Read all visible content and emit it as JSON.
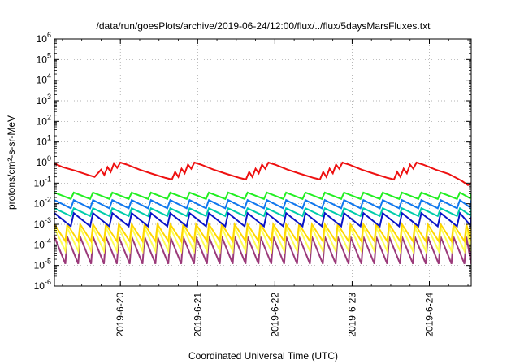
{
  "chart_data": {
    "type": "line",
    "title": "/data/run/goesPlots/archive/2019-06-24/12:00/flux/../flux/5daysMarsFluxes.txt",
    "xlabel": "Coordinated Universal Time (UTC)",
    "ylabel": "protons/cm²-s-sr-MeV",
    "y_scale": "log",
    "ylim": [
      1e-06,
      1000000.0
    ],
    "xlim": [
      "2019-06-19 03:30",
      "2019-06-24 13:00"
    ],
    "grid": true,
    "x_tick_labels": [
      "2019-6-20",
      "2019-6-21",
      "2019-6-22",
      "2019-6-23",
      "2019-6-24"
    ],
    "x_tick_dates": [
      "2019-06-20 00:00",
      "2019-06-21 00:00",
      "2019-06-22 00:00",
      "2019-06-23 00:00",
      "2019-06-24 00:00"
    ],
    "y_ticks": [
      1e-06,
      1e-05,
      0.0001,
      0.001,
      0.01,
      0.1,
      1.0,
      10.0,
      100.0,
      1000.0,
      10000.0,
      100000.0,
      1000000.0
    ],
    "y_tick_base": "10",
    "y_tick_exponents": [
      "-6",
      "-5",
      "-4",
      "-3",
      "-2",
      "-1",
      "0",
      "1",
      "2",
      "3",
      "4",
      "5",
      "6"
    ],
    "series": [
      {
        "color": "#ee1111",
        "points": [
          [
            "2019-06-19 03:30",
            0.9
          ],
          [
            "2019-06-19 06:00",
            0.6
          ],
          [
            "2019-06-19 10:00",
            0.4
          ],
          [
            "2019-06-19 14:00",
            0.25
          ],
          [
            "2019-06-19 16:00",
            0.2
          ],
          [
            "2019-06-19 18:00",
            0.45
          ],
          [
            "2019-06-19 19:00",
            0.25
          ],
          [
            "2019-06-19 20:00",
            0.6
          ],
          [
            "2019-06-19 21:00",
            0.35
          ],
          [
            "2019-06-19 22:00",
            0.9
          ],
          [
            "2019-06-19 23:00",
            0.55
          ],
          [
            "2019-06-20 00:00",
            1.0
          ],
          [
            "2019-06-20 02:00",
            0.8
          ],
          [
            "2019-06-20 06:00",
            0.45
          ],
          [
            "2019-06-20 10:00",
            0.28
          ],
          [
            "2019-06-20 14:00",
            0.18
          ],
          [
            "2019-06-20 16:00",
            0.15
          ],
          [
            "2019-06-20 17:00",
            0.35
          ],
          [
            "2019-06-20 18:00",
            0.2
          ],
          [
            "2019-06-20 19:00",
            0.5
          ],
          [
            "2019-06-20 20:00",
            0.3
          ],
          [
            "2019-06-20 21:00",
            0.8
          ],
          [
            "2019-06-20 22:00",
            0.5
          ],
          [
            "2019-06-20 23:00",
            1.0
          ],
          [
            "2019-06-21 01:00",
            0.8
          ],
          [
            "2019-06-21 05:00",
            0.45
          ],
          [
            "2019-06-21 09:00",
            0.28
          ],
          [
            "2019-06-21 13:00",
            0.18
          ],
          [
            "2019-06-21 15:00",
            0.15
          ],
          [
            "2019-06-21 16:00",
            0.35
          ],
          [
            "2019-06-21 17:00",
            0.2
          ],
          [
            "2019-06-21 18:00",
            0.5
          ],
          [
            "2019-06-21 19:00",
            0.3
          ],
          [
            "2019-06-21 20:00",
            0.8
          ],
          [
            "2019-06-21 21:00",
            0.5
          ],
          [
            "2019-06-21 22:00",
            1.0
          ],
          [
            "2019-06-22 00:00",
            0.8
          ],
          [
            "2019-06-22 04:00",
            0.45
          ],
          [
            "2019-06-22 08:00",
            0.28
          ],
          [
            "2019-06-22 12:00",
            0.18
          ],
          [
            "2019-06-22 14:00",
            0.15
          ],
          [
            "2019-06-22 15:00",
            0.35
          ],
          [
            "2019-06-22 16:00",
            0.2
          ],
          [
            "2019-06-22 17:00",
            0.5
          ],
          [
            "2019-06-22 18:00",
            0.3
          ],
          [
            "2019-06-22 19:00",
            0.8
          ],
          [
            "2019-06-22 20:00",
            0.5
          ],
          [
            "2019-06-22 21:00",
            1.0
          ],
          [
            "2019-06-22 23:00",
            0.8
          ],
          [
            "2019-06-23 03:00",
            0.45
          ],
          [
            "2019-06-23 07:00",
            0.28
          ],
          [
            "2019-06-23 11:00",
            0.18
          ],
          [
            "2019-06-23 13:00",
            0.15
          ],
          [
            "2019-06-23 14:00",
            0.35
          ],
          [
            "2019-06-23 15:00",
            0.2
          ],
          [
            "2019-06-23 16:00",
            0.5
          ],
          [
            "2019-06-23 17:00",
            0.3
          ],
          [
            "2019-06-23 18:00",
            0.8
          ],
          [
            "2019-06-23 19:00",
            0.5
          ],
          [
            "2019-06-23 20:00",
            1.0
          ],
          [
            "2019-06-23 22:00",
            0.8
          ],
          [
            "2019-06-24 02:00",
            0.45
          ],
          [
            "2019-06-24 06:00",
            0.28
          ],
          [
            "2019-06-24 10:00",
            0.13
          ],
          [
            "2019-06-24 12:00",
            0.08
          ],
          [
            "2019-06-24 13:00",
            0.1
          ]
        ]
      },
      {
        "color": "#22ee22",
        "period_hours": 6,
        "high": 0.035,
        "low": 0.017
      },
      {
        "color": "#1177ee",
        "period_hours": 6,
        "high": 0.015,
        "low": 0.006
      },
      {
        "color": "#00ccaa",
        "period_hours": 6,
        "high": 0.006,
        "low": 0.0025
      },
      {
        "color": "#0a14c8",
        "period_hours": 6,
        "high": 0.0035,
        "low": 0.0008
      },
      {
        "color": "#ffd700",
        "period_hours": 4,
        "high": 0.001,
        "low": 0.00015
      },
      {
        "color": "#ffff55",
        "period_hours": 4,
        "high": 0.0007,
        "low": 5e-05
      },
      {
        "color": "#9b3a7a",
        "period_hours": 4,
        "high": 0.00025,
        "low": 1.2e-05
      }
    ]
  }
}
